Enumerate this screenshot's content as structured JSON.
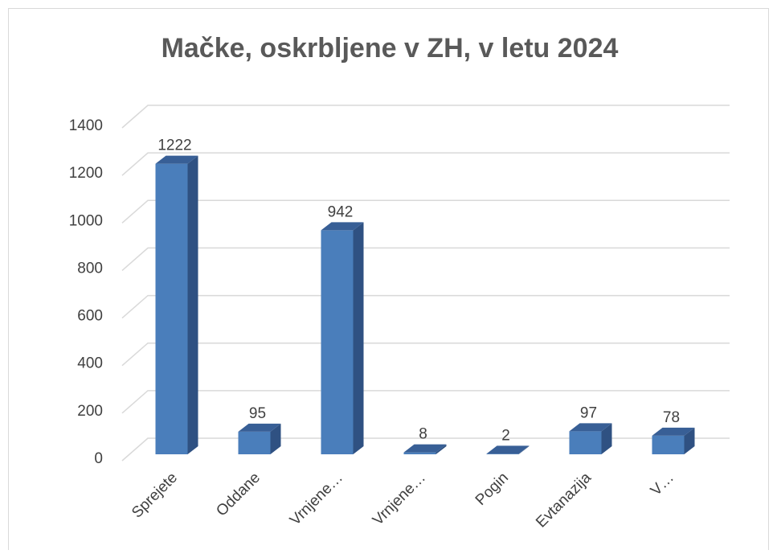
{
  "chart_data": {
    "type": "bar3d",
    "title": "Mačke, oskrbljene v ZH, v letu 2024",
    "categories": [
      "Sprejete",
      "Oddane",
      "Vrnjene…",
      "Vrnjene…",
      "Pogin",
      "Evtanazija",
      "V…"
    ],
    "values": [
      1222,
      95,
      942,
      8,
      2,
      97,
      78
    ],
    "color": "#4a7ebb",
    "ylim": [
      0,
      1400
    ],
    "yticks": [
      0,
      200,
      400,
      600,
      800,
      1000,
      1200,
      1400
    ],
    "grid": true
  }
}
